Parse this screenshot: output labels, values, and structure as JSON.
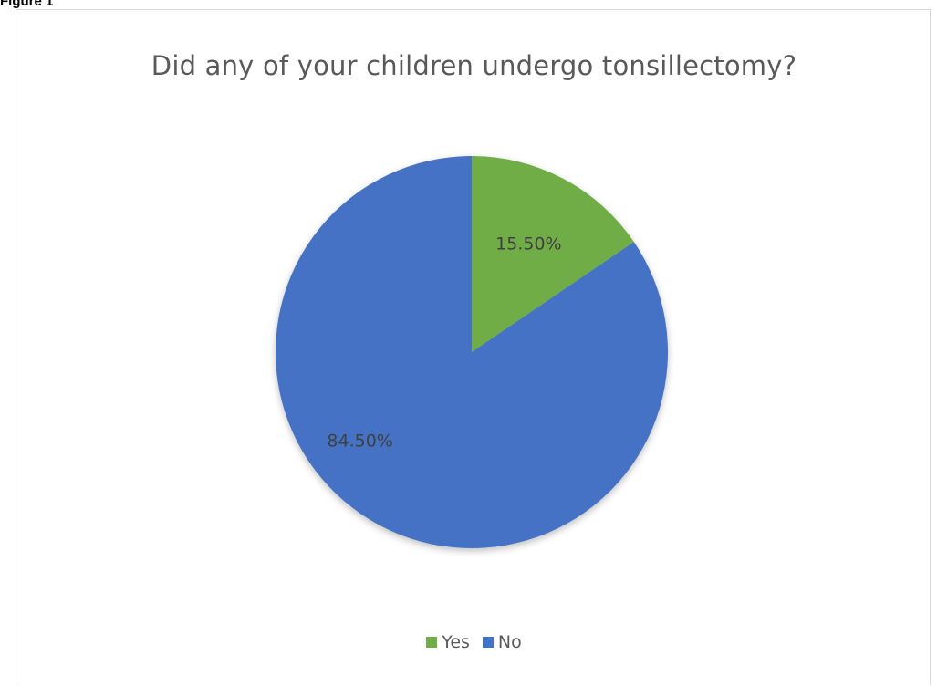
{
  "figure_label": "Figure 1",
  "chart_data": {
    "type": "pie",
    "title": "Did any of your children undergo tonsillectomy?",
    "categories": [
      "Yes",
      "No"
    ],
    "values": [
      15.5,
      84.5
    ],
    "value_labels": [
      "15.50%",
      "84.50%"
    ],
    "colors": [
      "#70ad47",
      "#4472c4"
    ],
    "start_angle": "12 o'clock",
    "direction": "clockwise",
    "legend_position": "bottom"
  }
}
